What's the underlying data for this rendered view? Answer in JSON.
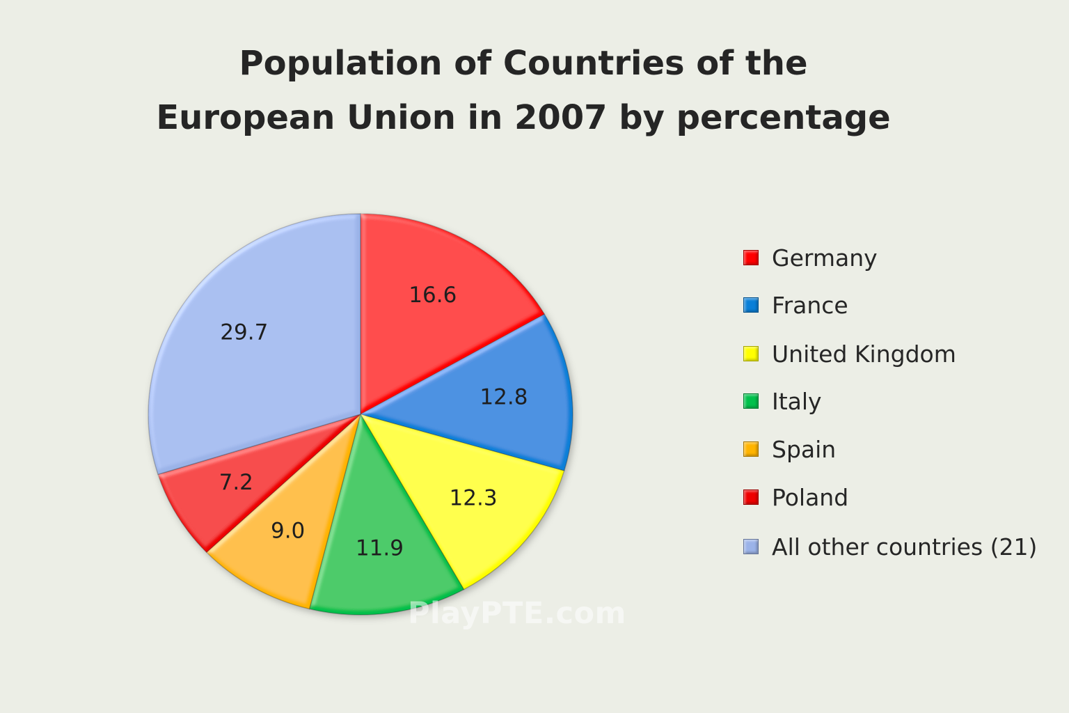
{
  "chart_data": {
    "type": "pie",
    "title": "Population of Countries of the European Union in 2007 by percentage",
    "title_lines": [
      "Population of Countries of the",
      "European Union in 2007 by percentage"
    ],
    "categories": [
      "Germany",
      "France",
      "United Kingdom",
      "Italy",
      "Spain",
      "Poland",
      "All other countries (21)"
    ],
    "values": [
      16.6,
      12.8,
      12.3,
      11.9,
      9.0,
      7.2,
      29.7
    ],
    "value_labels": [
      "16.6",
      "12.8",
      "12.3",
      "11.9",
      "9.0",
      "7.2",
      "29.7"
    ],
    "colors": [
      "#ff0000",
      "#0a7fd8",
      "#ffff00",
      "#00c04b",
      "#ffb400",
      "#ee0000",
      "#9bb3e8"
    ],
    "legend_position": "right",
    "start": "top, clockwise"
  },
  "watermark": "PlayPTE.com"
}
